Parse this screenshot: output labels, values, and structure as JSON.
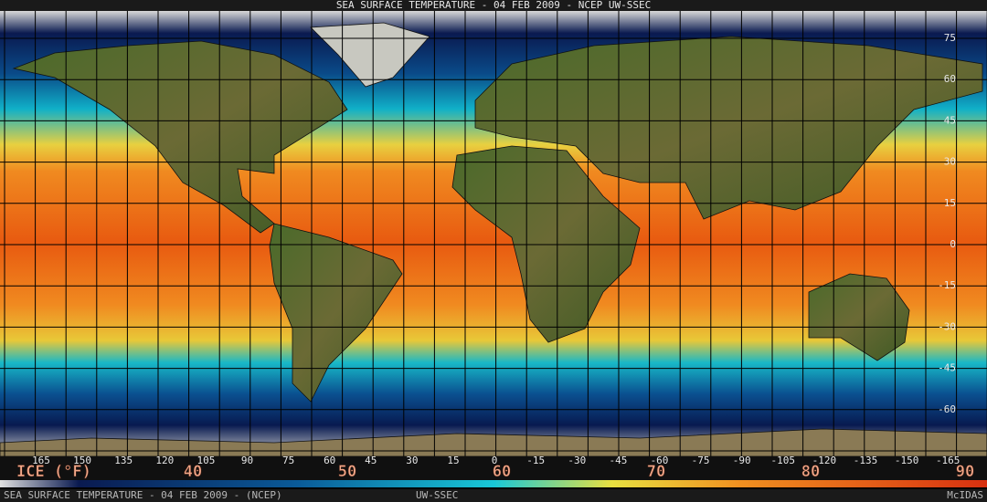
{
  "title": "SEA SURFACE TEMPERATURE - 04 FEB 2009 - NCEP UW-SSEC",
  "lat_labels": [
    75,
    60,
    45,
    30,
    15,
    0,
    -15,
    -30,
    -45,
    -60
  ],
  "lon_labels": [
    165,
    150,
    135,
    120,
    105,
    90,
    75,
    60,
    45,
    30,
    15,
    0,
    -15,
    -30,
    -45,
    -60,
    -75,
    -90,
    -105,
    -120,
    -135,
    -150,
    -165
  ],
  "colorbar": {
    "unit_label": "ICE (°F)",
    "labels": [
      40,
      50,
      60,
      70,
      80,
      90
    ]
  },
  "footer": {
    "left": "SEA SURFACE TEMPERATURE - 04 FEB 2009 - (NCEP)",
    "center": "UW-SSEC",
    "right": "McIDAS"
  }
}
